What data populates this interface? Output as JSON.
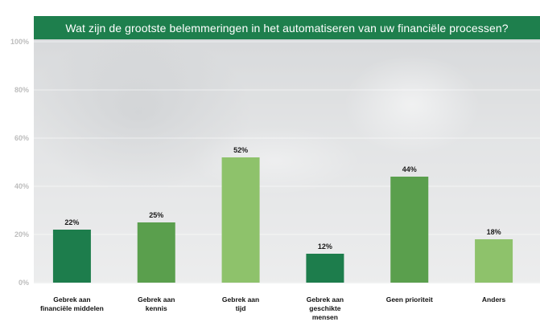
{
  "chart_data": {
    "type": "bar",
    "title": "Wat zijn de grootste belemmeringen in het automatiseren van uw financiële processen?",
    "categories": [
      [
        "Gebrek aan",
        "financiële middelen"
      ],
      [
        "Gebrek aan",
        "kennis"
      ],
      [
        "Gebrek aan",
        "tijd"
      ],
      [
        "Gebrek aan",
        "geschikte",
        "mensen"
      ],
      [
        "Geen prioriteit"
      ],
      [
        "Anders"
      ]
    ],
    "values": [
      22,
      25,
      52,
      12,
      44,
      18
    ],
    "data_labels": [
      "22%",
      "25%",
      "52%",
      "12%",
      "44%",
      "18%"
    ],
    "bar_colors": [
      "#1d7d4c",
      "#5a9f4d",
      "#8ec26b",
      "#1d7d4c",
      "#5a9f4d",
      "#8ec26b"
    ],
    "ylim": [
      0,
      100
    ],
    "yticks": [
      0,
      20,
      40,
      60,
      80,
      100
    ],
    "ytick_labels": [
      "0%",
      "20%",
      "40%",
      "60%",
      "80%",
      "100%"
    ],
    "gridlines": true,
    "legend": "none"
  }
}
